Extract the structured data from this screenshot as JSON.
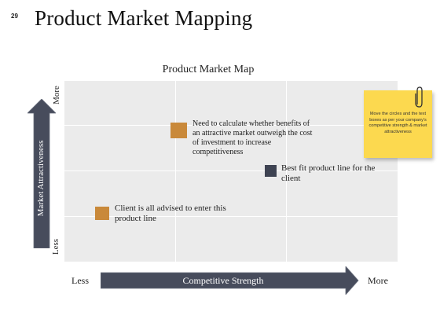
{
  "slide": {
    "number": "29",
    "title": "Product Market Mapping"
  },
  "map": {
    "title": "Product Market Map",
    "y_axis": {
      "label": "Market Attractiveness",
      "top_label": "More",
      "bottom_label": "Less"
    },
    "x_axis": {
      "label": "Competitive Strength",
      "left_label": "Less",
      "right_label": "More"
    },
    "points": [
      {
        "text": "Need to calculate whether benefits of an attractive market outweigh the cost of investment to increase competitiveness",
        "color": "#c9893a"
      },
      {
        "text": "Best fit product line for the client",
        "color": "#3e4352"
      },
      {
        "text": "Client is all advised to enter this product line",
        "color": "#c9893a"
      }
    ]
  },
  "sticky_note": {
    "text": "Move the circles and the text boxes as per your company's competitive strength & market attractiveness",
    "color": "#fcd94f"
  },
  "colors": {
    "arrow": "#474c5c",
    "plot_background": "#ebebeb",
    "accent_orange": "#c9893a",
    "accent_dark": "#3e4352"
  }
}
